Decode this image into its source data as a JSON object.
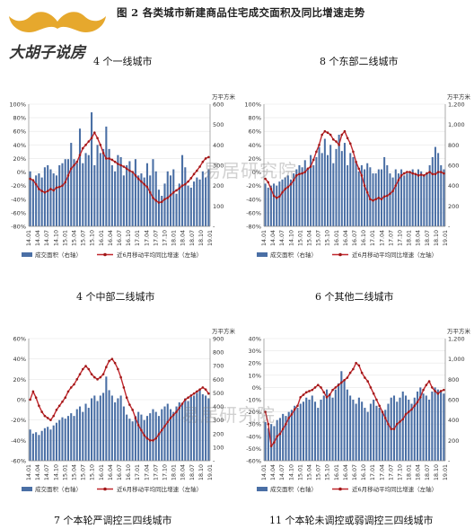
{
  "figure": {
    "title": "图 2 各类城市新建商品住宅成交面积及同比增速走势",
    "logo_text": "大胡子说房",
    "watermark": "易居研究院",
    "legend_bar": "成交面积（右轴）",
    "legend_line": "近6月移动平均同比增速（左轴）",
    "unit": "万平方米",
    "colors": {
      "bar": "#4a6fa5",
      "line": "#c0262c",
      "point": "#a01818",
      "logo": "#e6a82d",
      "logo_text": "#333333"
    }
  },
  "chart_data": [
    {
      "type": "bar+line",
      "title": "4 个一线城市",
      "x_ticks": [
        "14.01",
        "14.04",
        "14.07",
        "14.10",
        "15.01",
        "15.04",
        "15.07",
        "15.10",
        "16.01",
        "16.04",
        "16.07",
        "16.10",
        "17.01",
        "17.04",
        "17.07",
        "17.10",
        "18.01",
        "18.04",
        "18.07",
        "18.10",
        "19.01"
      ],
      "ylim_left": [
        -80,
        100
      ],
      "yticks_left": [
        "-80%",
        "-60%",
        "-40%",
        "-20%",
        "0%",
        "20%",
        "40%",
        "60%",
        "80%",
        "100%"
      ],
      "ylim_right": [
        0,
        600
      ],
      "yticks_right": [
        "-",
        "100",
        "200",
        "300",
        "400",
        "500",
        "600"
      ],
      "bars": [
        270,
        230,
        250,
        260,
        240,
        290,
        300,
        280,
        260,
        250,
        300,
        310,
        330,
        330,
        410,
        330,
        310,
        480,
        310,
        360,
        350,
        560,
        300,
        400,
        360,
        380,
        490,
        380,
        300,
        270,
        350,
        340,
        250,
        300,
        320,
        260,
        330,
        250,
        260,
        240,
        310,
        250,
        330,
        270,
        180,
        150,
        210,
        270,
        250,
        280,
        160,
        210,
        350,
        290,
        200,
        190,
        220,
        240,
        230,
        270,
        240,
        280
      ],
      "line": [
        -10,
        -12,
        -18,
        -25,
        -28,
        -30,
        -28,
        -25,
        -27,
        -23,
        -22,
        -20,
        -15,
        -5,
        5,
        10,
        15,
        25,
        35,
        40,
        45,
        50,
        58,
        50,
        40,
        28,
        20,
        20,
        18,
        15,
        12,
        10,
        8,
        5,
        2,
        0,
        -5,
        -10,
        -14,
        -18,
        -22,
        -30,
        -38,
        -42,
        -45,
        -44,
        -40,
        -38,
        -34,
        -30,
        -27,
        -24,
        -20,
        -18,
        -14,
        -9,
        -3,
        2,
        8,
        15,
        20,
        22
      ]
    },
    {
      "type": "bar+line",
      "title": "8 个东部二线城市",
      "x_ticks": [
        "14.01",
        "14.04",
        "14.07",
        "14.10",
        "15.01",
        "15.04",
        "15.07",
        "15.10",
        "16.01",
        "16.04",
        "16.07",
        "16.10",
        "17.01",
        "17.04",
        "17.07",
        "17.10",
        "18.01",
        "18.04",
        "18.07",
        "18.10",
        "19.01"
      ],
      "ylim_left": [
        -80,
        100
      ],
      "yticks_left": [
        "-80%",
        "-60%",
        "-40%",
        "-20%",
        "0%",
        "20%",
        "40%",
        "60%",
        "80%",
        "100%"
      ],
      "ylim_right": [
        0,
        1200
      ],
      "yticks_right": [
        "-",
        "200",
        "400",
        "600",
        "800",
        "1,000",
        "1,200"
      ],
      "bars": [
        420,
        380,
        400,
        420,
        400,
        440,
        460,
        480,
        500,
        460,
        520,
        560,
        600,
        580,
        650,
        560,
        700,
        600,
        680,
        780,
        720,
        860,
        700,
        800,
        620,
        760,
        900,
        740,
        820,
        600,
        720,
        680,
        640,
        540,
        600,
        560,
        620,
        580,
        520,
        520,
        560,
        560,
        680,
        600,
        520,
        480,
        560,
        520,
        560,
        500,
        520,
        540,
        560,
        520,
        560,
        540,
        500,
        520,
        600,
        680,
        780,
        720,
        600,
        560
      ],
      "line": [
        -10,
        -15,
        -25,
        -35,
        -38,
        -36,
        -30,
        -25,
        -22,
        -18,
        -12,
        -5,
        -3,
        -2,
        0,
        5,
        8,
        18,
        30,
        40,
        55,
        60,
        58,
        55,
        48,
        45,
        40,
        55,
        60,
        50,
        42,
        30,
        15,
        5,
        -5,
        -20,
        -30,
        -40,
        -42,
        -40,
        -38,
        -40,
        -36,
        -35,
        -32,
        -28,
        -20,
        -12,
        -5,
        -2,
        0,
        0,
        -2,
        -3,
        -5,
        -4,
        -5,
        -2,
        0,
        -3,
        -3,
        0,
        0,
        -2
      ]
    },
    {
      "type": "bar+line",
      "title": "4 个中部二线城市",
      "x_ticks": [
        "14.01",
        "14.04",
        "14.07",
        "14.10",
        "15.01",
        "15.04",
        "15.07",
        "15.10",
        "16.01",
        "16.04",
        "16.07",
        "16.10",
        "17.01",
        "17.04",
        "17.07",
        "17.10",
        "18.01",
        "18.04",
        "18.07",
        "18.10",
        "19.01"
      ],
      "ylim_left": [
        -60,
        60
      ],
      "yticks_left": [
        "-60%",
        "-40%",
        "-20%",
        "0%",
        "20%",
        "40%",
        "60%"
      ],
      "ylim_right": [
        0,
        900
      ],
      "yticks_right": [
        "-",
        "100",
        "200",
        "300",
        "400",
        "500",
        "600",
        "700",
        "800",
        "900"
      ],
      "bars": [
        230,
        200,
        210,
        190,
        220,
        240,
        250,
        230,
        260,
        280,
        300,
        320,
        310,
        330,
        350,
        330,
        380,
        400,
        360,
        420,
        390,
        460,
        480,
        440,
        480,
        500,
        620,
        520,
        480,
        430,
        460,
        480,
        400,
        340,
        310,
        290,
        330,
        360,
        340,
        300,
        330,
        350,
        380,
        360,
        330,
        380,
        400,
        420,
        380,
        360,
        400,
        430,
        420,
        460,
        440,
        470,
        480,
        500,
        520,
        490,
        480,
        460
      ],
      "line": [
        0,
        8,
        2,
        -6,
        -12,
        -16,
        -18,
        -20,
        -16,
        -10,
        -6,
        -2,
        2,
        8,
        12,
        15,
        20,
        25,
        30,
        33,
        30,
        25,
        22,
        20,
        22,
        25,
        32,
        38,
        40,
        36,
        30,
        22,
        12,
        2,
        -5,
        -10,
        -18,
        -25,
        -30,
        -35,
        -38,
        -40,
        -40,
        -38,
        -34,
        -30,
        -26,
        -22,
        -18,
        -15,
        -12,
        -8,
        -4,
        0,
        2,
        4,
        6,
        8,
        10,
        12,
        10,
        6
      ]
    },
    {
      "type": "bar+line",
      "title": "6 个其他二线城市",
      "x_ticks": [
        "14.01",
        "14.04",
        "14.07",
        "14.10",
        "15.01",
        "15.04",
        "15.07",
        "15.10",
        "16.01",
        "16.04",
        "16.07",
        "16.10",
        "17.01",
        "17.04",
        "17.07",
        "17.10",
        "18.01",
        "18.04",
        "18.07",
        "18.10",
        "19.01"
      ],
      "ylim_left": [
        -60,
        40
      ],
      "yticks_left": [
        "-60%",
        "-50%",
        "-40%",
        "-30%",
        "-20%",
        "-10%",
        "0%",
        "10%",
        "20%",
        "30%",
        "40%"
      ],
      "ylim_right": [
        0,
        1200
      ],
      "yticks_right": [
        "-",
        "200",
        "400",
        "600",
        "800",
        "1,000",
        "1,200"
      ],
      "bars": [
        380,
        320,
        360,
        340,
        400,
        420,
        460,
        440,
        480,
        500,
        540,
        520,
        560,
        580,
        620,
        600,
        640,
        580,
        520,
        600,
        640,
        700,
        660,
        620,
        700,
        760,
        880,
        800,
        700,
        640,
        600,
        560,
        620,
        580,
        520,
        480,
        560,
        600,
        540,
        520,
        480,
        500,
        560,
        620,
        640,
        580,
        620,
        680,
        640,
        600,
        560,
        620,
        680,
        720,
        660,
        640,
        600,
        680,
        720,
        700,
        680,
        660
      ],
      "line": [
        -20,
        -30,
        -48,
        -45,
        -40,
        -38,
        -34,
        -30,
        -25,
        -22,
        -18,
        -15,
        -8,
        -6,
        -4,
        -3,
        -2,
        0,
        2,
        0,
        -4,
        -8,
        -6,
        -2,
        0,
        2,
        4,
        6,
        8,
        12,
        15,
        20,
        18,
        12,
        8,
        5,
        0,
        -5,
        -10,
        -15,
        -20,
        -25,
        -30,
        -34,
        -34,
        -30,
        -28,
        -26,
        -22,
        -20,
        -18,
        -15,
        -12,
        -8,
        -2,
        2,
        5,
        0,
        -3,
        -5,
        -3,
        -2
      ]
    },
    {
      "type": "bar+line",
      "title": "7 个本轮严调控三四线城市",
      "x_ticks": [
        "14.01",
        "14.04",
        "14.07",
        "14.10",
        "15.01",
        "15.04",
        "15.07",
        "15.10",
        "16.01",
        "16.04",
        "16.07",
        "16.10",
        "17.01",
        "17.04",
        "17.07",
        "17.10",
        "18.01",
        "18.04",
        "18.07",
        "18.10",
        "19.01"
      ],
      "ylim_left": [],
      "ylim_right": [],
      "bars": [],
      "line": []
    },
    {
      "type": "bar+line",
      "title": "11 个本轮未调控或弱调控三四线城市",
      "x_ticks": [
        "14.01",
        "14.04",
        "14.07",
        "14.10",
        "15.01",
        "15.04",
        "15.07",
        "15.10",
        "16.01",
        "16.04",
        "16.07",
        "16.10",
        "17.01",
        "17.04",
        "17.07",
        "17.10",
        "18.01",
        "18.04",
        "18.07",
        "18.10",
        "19.01"
      ],
      "ylim_left": [],
      "ylim_right": [],
      "bars": [],
      "line": []
    }
  ]
}
